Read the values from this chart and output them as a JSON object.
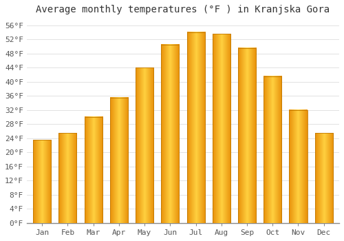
{
  "title": "Average monthly temperatures (°F ) in Kranjska Gora",
  "months": [
    "Jan",
    "Feb",
    "Mar",
    "Apr",
    "May",
    "Jun",
    "Jul",
    "Aug",
    "Sep",
    "Oct",
    "Nov",
    "Dec"
  ],
  "values": [
    23.5,
    25.5,
    30.0,
    35.5,
    44.0,
    50.5,
    54.0,
    53.5,
    49.5,
    41.5,
    32.0,
    25.5
  ],
  "bar_color_center": "#FFD040",
  "bar_color_edge": "#E8900A",
  "background_color": "#FFFFFF",
  "grid_color": "#DDDDDD",
  "yticks": [
    0,
    4,
    8,
    12,
    16,
    20,
    24,
    28,
    32,
    36,
    40,
    44,
    48,
    52,
    56
  ],
  "ytick_labels": [
    "0°F",
    "4°F",
    "8°F",
    "12°F",
    "16°F",
    "20°F",
    "24°F",
    "28°F",
    "32°F",
    "36°F",
    "40°F",
    "44°F",
    "48°F",
    "52°F",
    "56°F"
  ],
  "ylim": [
    0,
    58
  ],
  "title_fontsize": 10,
  "tick_fontsize": 8,
  "font_family": "monospace"
}
